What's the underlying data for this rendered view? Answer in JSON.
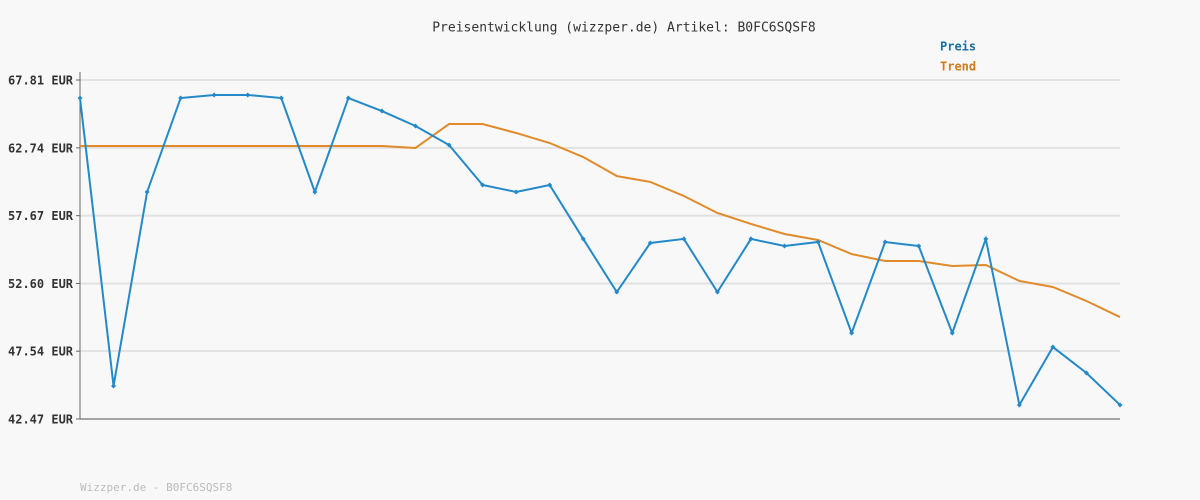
{
  "chart_data": {
    "type": "line",
    "title": "Preisentwicklung (wizzper.de) Artikel: B0FC6SQSF8",
    "footer": "Wizzper.de - B0FC6SQSF8",
    "categories": [
      null,
      null,
      null,
      null,
      null,
      null,
      null,
      null,
      null,
      null,
      null,
      null,
      null,
      null,
      null,
      null,
      null,
      null,
      null,
      null,
      null,
      null,
      null,
      null,
      null,
      null,
      null,
      null,
      null,
      null,
      null,
      null
    ],
    "series": [
      {
        "name": "Preis",
        "color": "#2389c8",
        "legend_color": "#1a6f9e",
        "markers": true,
        "values": [
          66.46,
          44.94,
          59.44,
          66.46,
          66.69,
          66.69,
          66.46,
          59.44,
          66.46,
          65.49,
          64.37,
          62.95,
          59.96,
          59.44,
          59.96,
          55.93,
          51.96,
          55.63,
          55.93,
          51.96,
          55.93,
          55.4,
          55.7,
          48.9,
          55.7,
          55.4,
          48.9,
          55.93,
          43.52,
          47.85,
          45.91,
          43.52
        ]
      },
      {
        "name": "Trend",
        "color": "#e08a2a",
        "legend_color": "#d07a1a",
        "markers": false,
        "values": [
          62.88,
          62.88,
          62.88,
          62.88,
          62.88,
          62.88,
          62.88,
          62.88,
          62.88,
          62.88,
          62.73,
          64.52,
          64.52,
          63.85,
          63.1,
          62.05,
          60.63,
          60.19,
          59.14,
          57.87,
          57.05,
          56.3,
          55.85,
          54.8,
          54.28,
          54.28,
          53.91,
          53.98,
          52.79,
          52.34,
          51.29,
          50.09
        ]
      }
    ],
    "ylim": [
      42.47,
      67.81
    ],
    "yticks": [
      {
        "value": 42.47,
        "label": "42.47 EUR"
      },
      {
        "value": 47.54,
        "label": "47.54 EUR"
      },
      {
        "value": 52.6,
        "label": "52.60 EUR"
      },
      {
        "value": 57.67,
        "label": "57.67 EUR"
      },
      {
        "value": 62.74,
        "label": "62.74 EUR"
      },
      {
        "value": 67.81,
        "label": "67.81 EUR"
      }
    ],
    "grid": true
  }
}
